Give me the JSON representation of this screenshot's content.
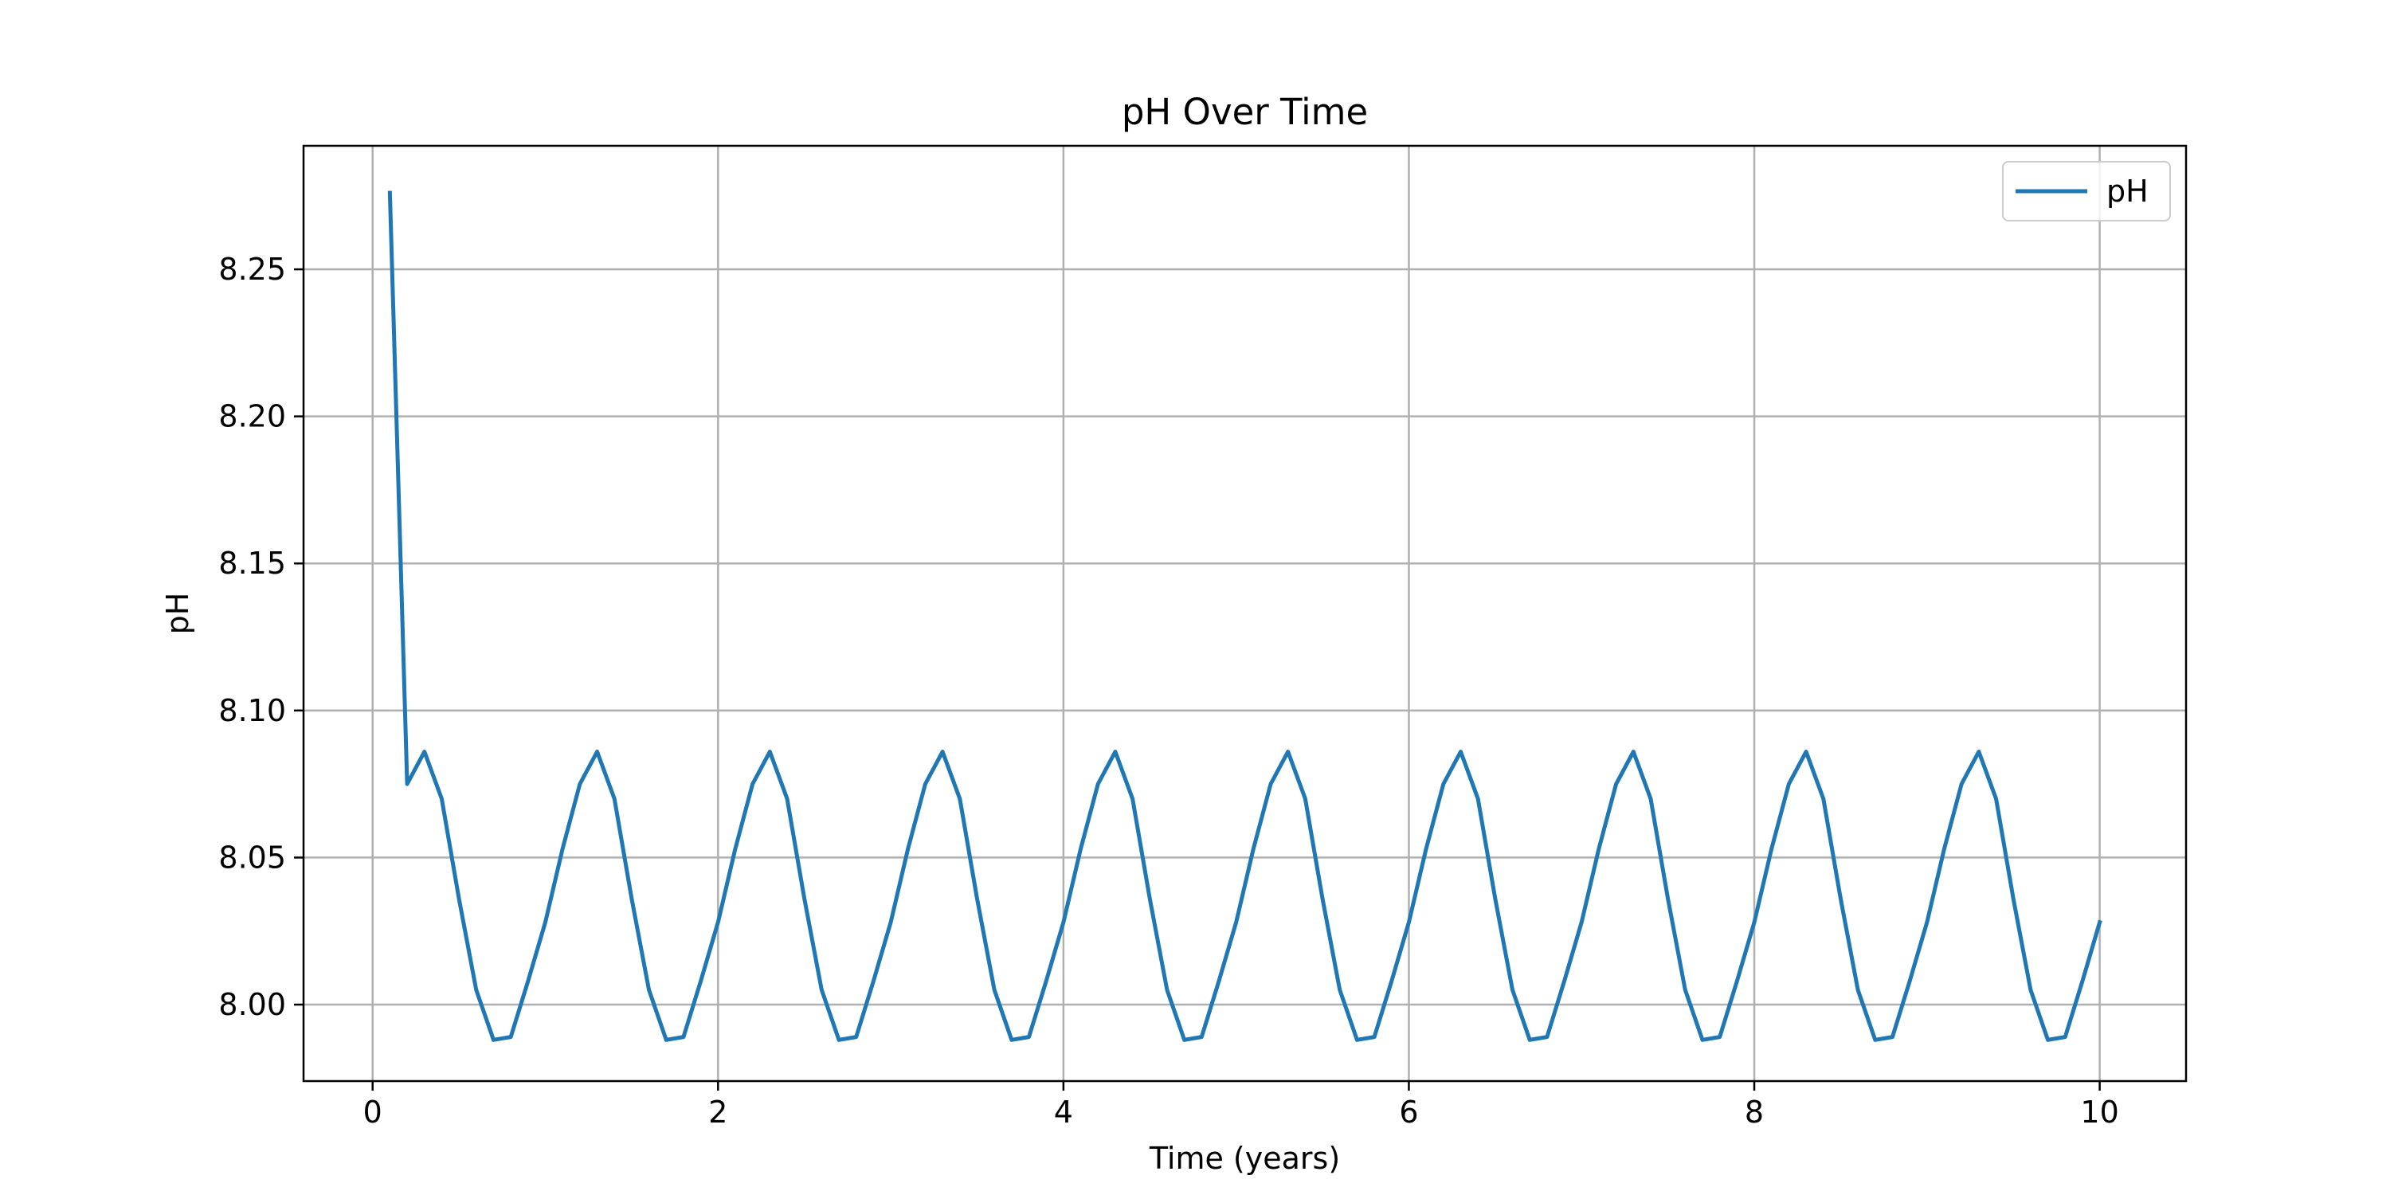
{
  "chart_data": {
    "type": "line",
    "title": "pH Over Time",
    "xlabel": "Time (years)",
    "ylabel": "pH",
    "xlim": [
      -0.4,
      10.5
    ],
    "ylim": [
      7.974,
      8.292
    ],
    "xticks": [
      0,
      2,
      4,
      6,
      8,
      10
    ],
    "xtick_labels": [
      "0",
      "2",
      "4",
      "6",
      "8",
      "10"
    ],
    "yticks": [
      8.0,
      8.05,
      8.1,
      8.15,
      8.2,
      8.25
    ],
    "ytick_labels": [
      "8.00",
      "8.05",
      "8.10",
      "8.15",
      "8.20",
      "8.25"
    ],
    "grid": true,
    "legend_position": "top-right",
    "series": [
      {
        "name": "pH",
        "color": "#1f77b4",
        "x": [
          0.1,
          0.2,
          0.3,
          0.4,
          0.5,
          0.6,
          0.7,
          0.8,
          0.9,
          1.0,
          1.1,
          1.2,
          1.3,
          1.4,
          1.5,
          1.6,
          1.7,
          1.8,
          1.9,
          2.0,
          2.1,
          2.2,
          2.3,
          2.4,
          2.5,
          2.6,
          2.7,
          2.8,
          2.9,
          3.0,
          3.1,
          3.2,
          3.3,
          3.4,
          3.5,
          3.6,
          3.7,
          3.8,
          3.9,
          4.0,
          4.1,
          4.2,
          4.3,
          4.4,
          4.5,
          4.6,
          4.7,
          4.8,
          4.9,
          5.0,
          5.1,
          5.2,
          5.3,
          5.4,
          5.5,
          5.6,
          5.7,
          5.8,
          5.9,
          6.0,
          6.1,
          6.2,
          6.3,
          6.4,
          6.5,
          6.6,
          6.7,
          6.8,
          6.9,
          7.0,
          7.1,
          7.2,
          7.3,
          7.4,
          7.5,
          7.6,
          7.7,
          7.8,
          7.9,
          8.0,
          8.1,
          8.2,
          8.3,
          8.4,
          8.5,
          8.6,
          8.7,
          8.8,
          8.9,
          9.0,
          9.1,
          9.2,
          9.3,
          9.4,
          9.5,
          9.6,
          9.7,
          9.8,
          9.9,
          10.0
        ],
        "values": [
          8.276,
          8.075,
          8.086,
          8.07,
          8.036,
          8.005,
          7.988,
          7.989,
          8.008,
          8.028,
          8.053,
          8.075,
          8.086,
          8.07,
          8.036,
          8.005,
          7.988,
          7.989,
          8.008,
          8.028,
          8.053,
          8.075,
          8.086,
          8.07,
          8.036,
          8.005,
          7.988,
          7.989,
          8.008,
          8.028,
          8.053,
          8.075,
          8.086,
          8.07,
          8.036,
          8.005,
          7.988,
          7.989,
          8.008,
          8.028,
          8.053,
          8.075,
          8.086,
          8.07,
          8.036,
          8.005,
          7.988,
          7.989,
          8.008,
          8.028,
          8.053,
          8.075,
          8.086,
          8.07,
          8.036,
          8.005,
          7.988,
          7.989,
          8.008,
          8.028,
          8.053,
          8.075,
          8.086,
          8.07,
          8.036,
          8.005,
          7.988,
          7.989,
          8.008,
          8.028,
          8.053,
          8.075,
          8.086,
          8.07,
          8.036,
          8.005,
          7.988,
          7.989,
          8.008,
          8.028,
          8.053,
          8.075,
          8.086,
          8.07,
          8.036,
          8.005,
          7.988,
          7.989,
          8.008,
          8.028,
          8.053,
          8.075,
          8.086,
          8.07,
          8.036,
          8.005,
          7.988,
          7.989,
          8.008,
          8.028
        ]
      }
    ]
  }
}
